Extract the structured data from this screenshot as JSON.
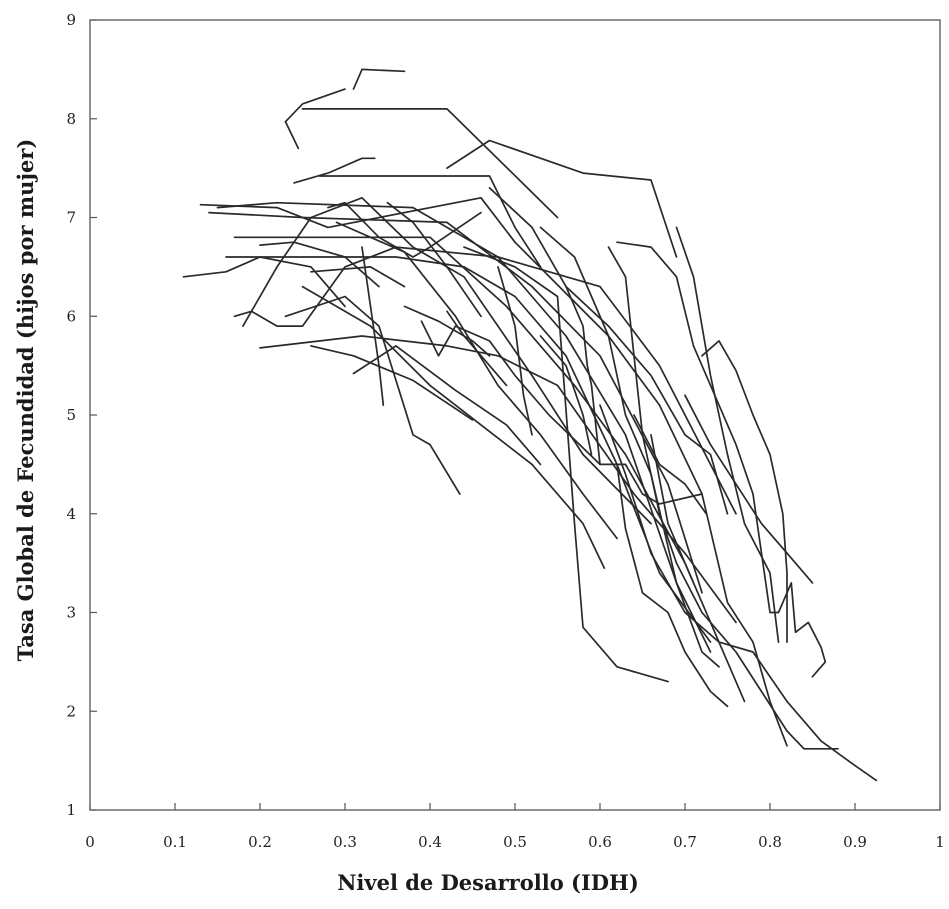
{
  "chart_data": {
    "type": "line",
    "title": "",
    "xlabel": "Nivel de Desarrollo (IDH)",
    "ylabel": "Tasa Global de Fecundidad (hijos por mujer)",
    "xlim": [
      0,
      1
    ],
    "ylim": [
      1,
      9
    ],
    "x_ticks": [
      0,
      0.1,
      0.2,
      0.3,
      0.4,
      0.5,
      0.6,
      0.7,
      0.8,
      0.9,
      1
    ],
    "x_tick_labels": [
      "0",
      "0.1",
      "0.2",
      "0.3",
      "0.4",
      "0.5",
      "0.6",
      "0.7",
      "0.8",
      "0.9",
      "1"
    ],
    "y_ticks": [
      1,
      2,
      3,
      4,
      5,
      6,
      7,
      8,
      9
    ],
    "y_tick_labels": [
      "1",
      "2",
      "3",
      "4",
      "5",
      "6",
      "7",
      "8",
      "9"
    ],
    "grid": false,
    "legend": "none",
    "line_color": "#2a2a2a",
    "series": [
      {
        "points": [
          [
            0.31,
            8.3
          ],
          [
            0.32,
            8.5
          ],
          [
            0.37,
            8.48
          ]
        ]
      },
      {
        "points": [
          [
            0.25,
            8.1
          ],
          [
            0.42,
            8.1
          ],
          [
            0.55,
            7.0
          ]
        ]
      },
      {
        "points": [
          [
            0.23,
            7.97
          ],
          [
            0.25,
            8.15
          ],
          [
            0.3,
            8.3
          ]
        ]
      },
      {
        "points": [
          [
            0.23,
            7.97
          ],
          [
            0.245,
            7.7
          ]
        ]
      },
      {
        "points": [
          [
            0.24,
            7.35
          ],
          [
            0.28,
            7.45
          ],
          [
            0.32,
            7.6
          ],
          [
            0.335,
            7.6
          ]
        ]
      },
      {
        "points": [
          [
            0.27,
            7.42
          ],
          [
            0.47,
            7.42
          ],
          [
            0.5,
            6.9
          ],
          [
            0.53,
            6.5
          ]
        ]
      },
      {
        "points": [
          [
            0.42,
            7.5
          ],
          [
            0.47,
            7.78
          ],
          [
            0.58,
            7.45
          ],
          [
            0.66,
            7.38
          ],
          [
            0.69,
            6.6
          ]
        ]
      },
      {
        "points": [
          [
            0.15,
            7.1
          ],
          [
            0.22,
            7.15
          ],
          [
            0.38,
            7.1
          ],
          [
            0.48,
            6.6
          ],
          [
            0.6,
            6.3
          ],
          [
            0.67,
            5.5
          ],
          [
            0.76,
            4.0
          ]
        ]
      },
      {
        "points": [
          [
            0.13,
            7.13
          ],
          [
            0.22,
            7.1
          ],
          [
            0.28,
            6.9
          ],
          [
            0.46,
            7.2
          ],
          [
            0.5,
            6.75
          ],
          [
            0.61,
            5.8
          ],
          [
            0.67,
            5.1
          ],
          [
            0.72,
            4.2
          ]
        ]
      },
      {
        "points": [
          [
            0.14,
            7.05
          ],
          [
            0.25,
            7.0
          ],
          [
            0.42,
            6.95
          ],
          [
            0.52,
            6.3
          ],
          [
            0.6,
            5.6
          ],
          [
            0.68,
            4.3
          ],
          [
            0.72,
            3.2
          ]
        ]
      },
      {
        "points": [
          [
            0.17,
            6.8
          ],
          [
            0.4,
            6.8
          ],
          [
            0.49,
            6.1
          ],
          [
            0.57,
            5.3
          ],
          [
            0.63,
            4.6
          ],
          [
            0.7,
            3.5
          ],
          [
            0.77,
            2.1
          ]
        ]
      },
      {
        "points": [
          [
            0.16,
            6.6
          ],
          [
            0.36,
            6.6
          ],
          [
            0.44,
            6.5
          ],
          [
            0.5,
            6.2
          ],
          [
            0.56,
            5.6
          ],
          [
            0.62,
            4.5
          ],
          [
            0.67,
            3.4
          ],
          [
            0.73,
            2.7
          ]
        ]
      },
      {
        "points": [
          [
            0.11,
            6.4
          ],
          [
            0.16,
            6.45
          ],
          [
            0.2,
            6.6
          ],
          [
            0.26,
            6.5
          ],
          [
            0.3,
            6.1
          ]
        ]
      },
      {
        "points": [
          [
            0.17,
            6.0
          ],
          [
            0.19,
            6.05
          ],
          [
            0.22,
            5.9
          ],
          [
            0.25,
            5.9
          ],
          [
            0.3,
            6.5
          ],
          [
            0.36,
            6.7
          ],
          [
            0.48,
            6.6
          ],
          [
            0.56,
            5.8
          ],
          [
            0.63,
            4.8
          ],
          [
            0.69,
            3.3
          ],
          [
            0.73,
            2.6
          ]
        ]
      },
      {
        "points": [
          [
            0.18,
            5.9
          ],
          [
            0.22,
            6.5
          ],
          [
            0.26,
            7.0
          ],
          [
            0.32,
            7.2
          ],
          [
            0.38,
            6.7
          ],
          [
            0.44,
            6.4
          ],
          [
            0.52,
            5.4
          ],
          [
            0.58,
            4.6
          ],
          [
            0.66,
            3.9
          ]
        ]
      },
      {
        "points": [
          [
            0.2,
            5.68
          ],
          [
            0.32,
            5.8
          ],
          [
            0.42,
            5.7
          ],
          [
            0.48,
            5.6
          ],
          [
            0.55,
            5.3
          ],
          [
            0.64,
            4.2
          ],
          [
            0.7,
            3.6
          ],
          [
            0.76,
            2.9
          ]
        ]
      },
      {
        "points": [
          [
            0.23,
            6.0
          ],
          [
            0.3,
            6.2
          ],
          [
            0.34,
            5.9
          ],
          [
            0.38,
            4.8
          ],
          [
            0.4,
            4.7
          ],
          [
            0.435,
            4.2
          ]
        ]
      },
      {
        "points": [
          [
            0.26,
            5.7
          ],
          [
            0.31,
            5.6
          ],
          [
            0.38,
            5.35
          ],
          [
            0.45,
            4.95
          ]
        ]
      },
      {
        "points": [
          [
            0.31,
            5.42
          ],
          [
            0.36,
            5.7
          ],
          [
            0.43,
            5.25
          ],
          [
            0.49,
            4.9
          ],
          [
            0.53,
            4.5
          ]
        ]
      },
      {
        "points": [
          [
            0.32,
            6.7
          ],
          [
            0.34,
            5.5
          ],
          [
            0.345,
            5.1
          ]
        ]
      },
      {
        "points": [
          [
            0.29,
            6.95
          ],
          [
            0.37,
            6.65
          ],
          [
            0.43,
            6.0
          ],
          [
            0.48,
            5.3
          ],
          [
            0.53,
            4.8
          ],
          [
            0.58,
            4.2
          ],
          [
            0.62,
            3.75
          ]
        ]
      },
      {
        "points": [
          [
            0.25,
            6.3
          ],
          [
            0.33,
            5.9
          ],
          [
            0.4,
            5.3
          ],
          [
            0.46,
            4.9
          ],
          [
            0.52,
            4.5
          ],
          [
            0.58,
            3.9
          ],
          [
            0.605,
            3.45
          ]
        ]
      },
      {
        "points": [
          [
            0.39,
            5.95
          ],
          [
            0.41,
            5.6
          ],
          [
            0.43,
            5.9
          ],
          [
            0.47,
            5.75
          ],
          [
            0.5,
            5.4
          ],
          [
            0.54,
            5.0
          ],
          [
            0.6,
            4.5
          ]
        ]
      },
      {
        "points": [
          [
            0.48,
            6.5
          ],
          [
            0.5,
            5.9
          ],
          [
            0.51,
            5.2
          ],
          [
            0.52,
            4.8
          ]
        ]
      },
      {
        "points": [
          [
            0.44,
            6.7
          ],
          [
            0.5,
            6.5
          ],
          [
            0.55,
            6.2
          ],
          [
            0.57,
            3.9
          ],
          [
            0.58,
            2.85
          ],
          [
            0.62,
            2.45
          ],
          [
            0.68,
            2.3
          ]
        ]
      },
      {
        "points": [
          [
            0.47,
            7.3
          ],
          [
            0.52,
            6.9
          ],
          [
            0.56,
            6.3
          ],
          [
            0.58,
            5.9
          ],
          [
            0.585,
            5.5
          ],
          [
            0.59,
            5.3
          ],
          [
            0.6,
            4.5
          ],
          [
            0.63,
            4.5
          ],
          [
            0.65,
            4.2
          ],
          [
            0.67,
            4.1
          ],
          [
            0.72,
            4.2
          ],
          [
            0.75,
            3.1
          ],
          [
            0.78,
            2.7
          ],
          [
            0.8,
            2.1
          ],
          [
            0.82,
            1.65
          ]
        ]
      },
      {
        "points": [
          [
            0.53,
            6.9
          ],
          [
            0.57,
            6.6
          ],
          [
            0.61,
            5.8
          ],
          [
            0.63,
            5.0
          ],
          [
            0.66,
            4.4
          ],
          [
            0.69,
            3.3
          ],
          [
            0.72,
            2.6
          ],
          [
            0.74,
            2.45
          ]
        ]
      },
      {
        "points": [
          [
            0.56,
            6.3
          ],
          [
            0.61,
            5.9
          ],
          [
            0.66,
            5.4
          ],
          [
            0.7,
            4.8
          ],
          [
            0.73,
            4.6
          ],
          [
            0.75,
            4.0
          ]
        ]
      },
      {
        "points": [
          [
            0.62,
            6.75
          ],
          [
            0.66,
            6.7
          ],
          [
            0.69,
            6.4
          ],
          [
            0.71,
            5.7
          ],
          [
            0.74,
            5.1
          ],
          [
            0.76,
            4.7
          ],
          [
            0.78,
            4.2
          ],
          [
            0.79,
            3.6
          ],
          [
            0.8,
            3.0
          ],
          [
            0.81,
            3.0
          ],
          [
            0.82,
            3.2
          ],
          [
            0.825,
            3.3
          ],
          [
            0.83,
            2.8
          ],
          [
            0.845,
            2.9
          ],
          [
            0.86,
            2.65
          ],
          [
            0.865,
            2.5
          ],
          [
            0.85,
            2.35
          ]
        ]
      },
      {
        "points": [
          [
            0.61,
            6.7
          ],
          [
            0.63,
            6.4
          ],
          [
            0.64,
            5.6
          ],
          [
            0.65,
            4.8
          ],
          [
            0.67,
            4.0
          ],
          [
            0.69,
            3.5
          ],
          [
            0.72,
            3.0
          ],
          [
            0.76,
            2.6
          ],
          [
            0.79,
            2.2
          ],
          [
            0.82,
            1.8
          ],
          [
            0.84,
            1.62
          ],
          [
            0.88,
            1.62
          ]
        ]
      },
      {
        "points": [
          [
            0.69,
            6.9
          ],
          [
            0.71,
            6.4
          ],
          [
            0.73,
            5.4
          ],
          [
            0.75,
            4.6
          ],
          [
            0.77,
            3.9
          ],
          [
            0.8,
            3.4
          ],
          [
            0.81,
            2.7
          ]
        ]
      },
      {
        "points": [
          [
            0.72,
            5.6
          ],
          [
            0.74,
            5.75
          ],
          [
            0.76,
            5.45
          ],
          [
            0.78,
            5.0
          ],
          [
            0.8,
            4.6
          ],
          [
            0.815,
            4.0
          ],
          [
            0.82,
            3.4
          ],
          [
            0.82,
            2.7
          ]
        ]
      },
      {
        "points": [
          [
            0.7,
            5.2
          ],
          [
            0.73,
            4.7
          ],
          [
            0.76,
            4.3
          ],
          [
            0.79,
            3.9
          ],
          [
            0.83,
            3.5
          ],
          [
            0.85,
            3.3
          ]
        ]
      },
      {
        "points": [
          [
            0.6,
            5.1
          ],
          [
            0.63,
            4.4
          ],
          [
            0.66,
            3.6
          ],
          [
            0.7,
            3.0
          ],
          [
            0.74,
            2.7
          ],
          [
            0.78,
            2.6
          ],
          [
            0.82,
            2.1
          ],
          [
            0.86,
            1.7
          ],
          [
            0.9,
            1.45
          ],
          [
            0.925,
            1.3
          ]
        ]
      },
      {
        "points": [
          [
            0.64,
            5.0
          ],
          [
            0.67,
            4.5
          ],
          [
            0.7,
            4.3
          ],
          [
            0.725,
            4.0
          ]
        ]
      },
      {
        "points": [
          [
            0.66,
            4.8
          ],
          [
            0.68,
            3.9
          ],
          [
            0.7,
            3.5
          ],
          [
            0.71,
            3.3
          ]
        ]
      },
      {
        "points": [
          [
            0.62,
            4.5
          ],
          [
            0.63,
            3.85
          ],
          [
            0.65,
            3.2
          ],
          [
            0.68,
            3.0
          ],
          [
            0.7,
            2.6
          ],
          [
            0.73,
            2.2
          ],
          [
            0.75,
            2.05
          ]
        ]
      },
      {
        "points": [
          [
            0.42,
            6.05
          ],
          [
            0.44,
            5.8
          ],
          [
            0.47,
            5.5
          ],
          [
            0.49,
            5.3
          ]
        ]
      },
      {
        "points": [
          [
            0.37,
            6.1
          ],
          [
            0.41,
            5.95
          ],
          [
            0.45,
            5.75
          ],
          [
            0.47,
            5.6
          ]
        ]
      },
      {
        "points": [
          [
            0.28,
            7.1
          ],
          [
            0.3,
            7.15
          ],
          [
            0.34,
            6.8
          ],
          [
            0.38,
            6.6
          ],
          [
            0.4,
            6.7
          ],
          [
            0.46,
            7.05
          ]
        ]
      },
      {
        "points": [
          [
            0.2,
            6.72
          ],
          [
            0.24,
            6.75
          ],
          [
            0.3,
            6.6
          ],
          [
            0.34,
            6.3
          ]
        ]
      },
      {
        "points": [
          [
            0.26,
            6.45
          ],
          [
            0.33,
            6.5
          ],
          [
            0.37,
            6.3
          ]
        ]
      },
      {
        "points": [
          [
            0.35,
            7.15
          ],
          [
            0.38,
            6.95
          ],
          [
            0.42,
            6.5
          ],
          [
            0.46,
            6.0
          ]
        ]
      },
      {
        "points": [
          [
            0.53,
            5.8
          ],
          [
            0.56,
            5.5
          ],
          [
            0.58,
            5.0
          ],
          [
            0.59,
            4.6
          ]
        ]
      }
    ]
  }
}
